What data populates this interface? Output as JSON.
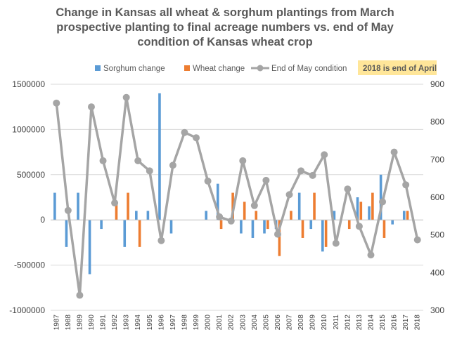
{
  "chart_data": {
    "type": "bar+line",
    "title_lines": [
      "Change in Kansas all wheat & sorghum plantings from March",
      "prospective planting to final acreage numbers vs. end of May",
      "condition of Kansas wheat crop"
    ],
    "categories": [
      "1987",
      "1988",
      "1989",
      "1990",
      "1991",
      "1992",
      "1993",
      "1994",
      "1995",
      "1996",
      "1997",
      "1998",
      "1999",
      "2000",
      "2001",
      "2002",
      "2003",
      "2004",
      "2005",
      "2006",
      "2007",
      "2008",
      "2009",
      "2010",
      "2011",
      "2012",
      "2013",
      "2014",
      "2015",
      "2016",
      "2017",
      "2018"
    ],
    "series": [
      {
        "name": "Sorghum change",
        "type": "bar",
        "axis": "left",
        "color": "#5b9bd5",
        "values": [
          300000,
          -300000,
          300000,
          -600000,
          -100000,
          0,
          -300000,
          100000,
          100000,
          1400000,
          -150000,
          0,
          0,
          100000,
          400000,
          0,
          -150000,
          -200000,
          -150000,
          -100000,
          0,
          300000,
          -100000,
          -350000,
          100000,
          0,
          250000,
          150000,
          500000,
          -50000,
          100000,
          0
        ]
      },
      {
        "name": "Wheat change",
        "type": "bar",
        "axis": "left",
        "color": "#ed7d31",
        "values": [
          0,
          0,
          0,
          0,
          0,
          200000,
          300000,
          -300000,
          0,
          0,
          0,
          0,
          0,
          0,
          -100000,
          300000,
          200000,
          100000,
          -100000,
          -400000,
          100000,
          -200000,
          300000,
          -300000,
          0,
          -100000,
          200000,
          300000,
          -200000,
          0,
          100000,
          0
        ]
      },
      {
        "name": "End of May condition",
        "type": "line",
        "axis": "right",
        "color": "#a5a5a5",
        "values": [
          850,
          565,
          340,
          840,
          697,
          585,
          865,
          697,
          670,
          485,
          685,
          772,
          758,
          643,
          548,
          537,
          697,
          578,
          645,
          502,
          607,
          670,
          658,
          713,
          478,
          622,
          523,
          447,
          588,
          720,
          633,
          487
        ]
      }
    ],
    "left_axis": {
      "ylim": [
        -1000000,
        1500000
      ],
      "ticks": [
        "1500000",
        "1000000",
        "500000",
        "0",
        "-500000",
        "-1000000"
      ]
    },
    "right_axis": {
      "ylim": [
        300,
        900
      ],
      "ticks": [
        "900",
        "800",
        "700",
        "600",
        "500",
        "400",
        "300"
      ]
    },
    "grid": true,
    "legend": {
      "placement": "top",
      "note": "2018 is end of April",
      "note_color": "#ffe699"
    }
  }
}
